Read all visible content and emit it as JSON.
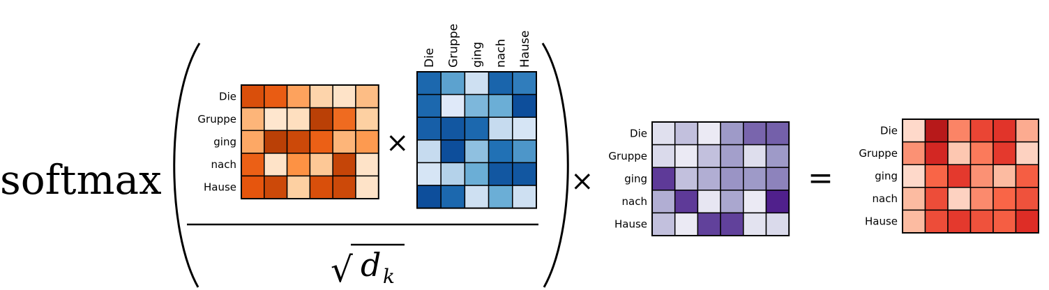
{
  "formula": {
    "function_name": "softmax",
    "times_symbol": "×",
    "equals_symbol": "=",
    "sqrt_symbol": "√",
    "denominator_var": "d",
    "denominator_subscript": "k"
  },
  "row_labels": [
    "Die",
    "Gruppe",
    "ging",
    "nach",
    "Hause"
  ],
  "col_labels": [
    "Die",
    "Gruppe",
    "ging",
    "nach",
    "Hause"
  ],
  "matrices": {
    "query": {
      "colormap": "oranges",
      "values": [
        [
          0.8,
          0.72,
          0.42,
          0.22,
          0.12,
          0.32
        ],
        [
          0.35,
          0.1,
          0.15,
          0.92,
          0.65,
          0.25
        ],
        [
          0.4,
          0.92,
          0.85,
          0.7,
          0.35,
          0.45
        ],
        [
          0.7,
          0.12,
          0.48,
          0.28,
          0.88,
          0.12
        ],
        [
          0.75,
          0.85,
          0.25,
          0.8,
          0.85,
          0.12
        ]
      ]
    },
    "key_transposed": {
      "colormap": "blues",
      "values": [
        [
          0.8,
          0.55,
          0.2,
          0.82,
          0.7
        ],
        [
          0.8,
          0.1,
          0.45,
          0.5,
          0.95
        ],
        [
          0.85,
          0.9,
          0.8,
          0.25,
          0.15
        ],
        [
          0.25,
          0.95,
          0.4,
          0.75,
          0.6
        ],
        [
          0.15,
          0.3,
          0.5,
          0.9,
          0.9
        ],
        [
          0.95,
          0.8,
          0.2,
          0.5,
          0.2
        ]
      ]
    },
    "value": {
      "colormap": "purples",
      "values": [
        [
          0.2,
          0.35,
          0.12,
          0.5,
          0.68,
          0.7
        ],
        [
          0.25,
          0.12,
          0.35,
          0.48,
          0.22,
          0.5
        ],
        [
          0.82,
          0.35,
          0.42,
          0.52,
          0.5,
          0.58
        ],
        [
          0.42,
          0.82,
          0.15,
          0.45,
          0.12,
          0.9
        ],
        [
          0.35,
          0.12,
          0.8,
          0.8,
          0.18,
          0.25
        ]
      ]
    },
    "output": {
      "colormap": "reds",
      "values": [
        [
          0.12,
          0.92,
          0.42,
          0.65,
          0.72,
          0.3
        ],
        [
          0.38,
          0.8,
          0.2,
          0.45,
          0.7,
          0.15
        ],
        [
          0.12,
          0.52,
          0.7,
          0.38,
          0.25,
          0.55
        ],
        [
          0.25,
          0.62,
          0.15,
          0.4,
          0.52,
          0.6
        ],
        [
          0.25,
          0.62,
          0.7,
          0.6,
          0.55,
          0.75
        ]
      ]
    }
  }
}
